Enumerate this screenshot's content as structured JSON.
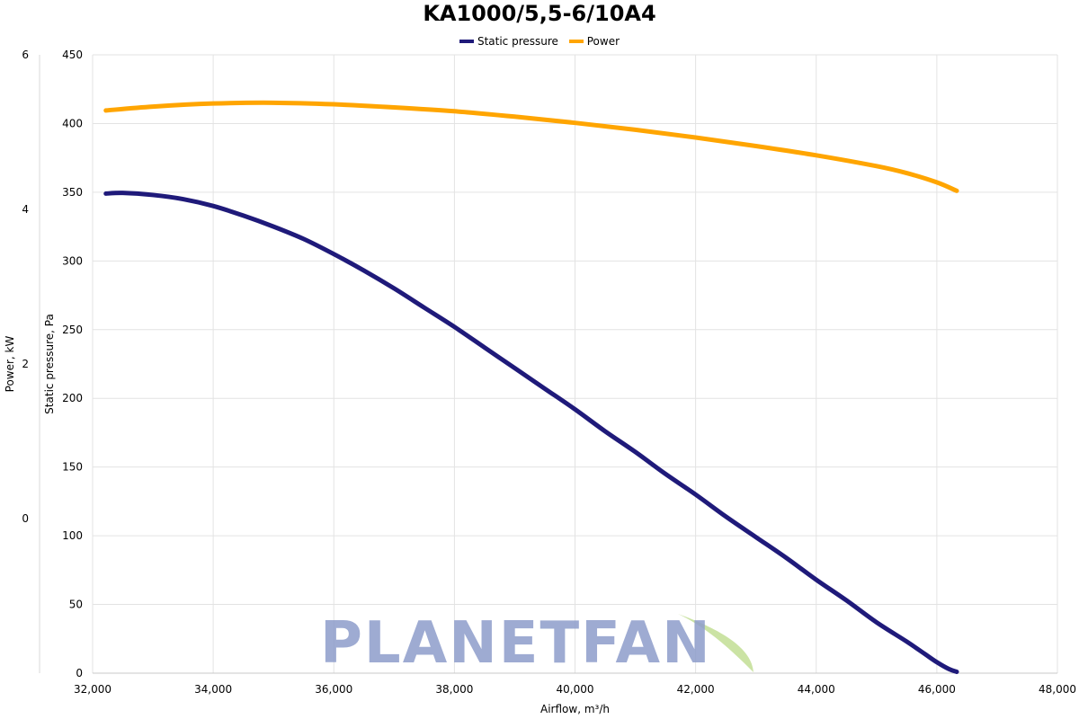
{
  "chart_data": {
    "type": "line",
    "title": "KA1000/5,5-6/10A4",
    "xlabel": "Airflow, m³/h",
    "ylabel_left_outer": "Power, kW",
    "ylabel_left_inner": "Static pressure, Pa",
    "xlim": [
      32000,
      48000
    ],
    "x_ticks": [
      "32,000",
      "34,000",
      "36,000",
      "38,000",
      "40,000",
      "42,000",
      "44,000",
      "46,000",
      "48,000"
    ],
    "y_pressure_lim": [
      0,
      450
    ],
    "y_pressure_ticks": [
      "0",
      "50",
      "100",
      "150",
      "200",
      "250",
      "300",
      "350",
      "400",
      "450"
    ],
    "y_power_lim": [
      -2,
      6
    ],
    "y_power_ticks": [
      "0",
      "2",
      "4",
      "6"
    ],
    "grid": true,
    "legend_position": "top-center",
    "series": [
      {
        "name": "Static pressure",
        "color": "#1f1a7a",
        "axis": "pressure",
        "points": [
          [
            32220,
            349
          ],
          [
            32500,
            349.5
          ],
          [
            33000,
            348
          ],
          [
            33500,
            345
          ],
          [
            34000,
            340
          ],
          [
            34500,
            333
          ],
          [
            35000,
            325
          ],
          [
            35500,
            316
          ],
          [
            36000,
            305
          ],
          [
            36500,
            293
          ],
          [
            37000,
            280
          ],
          [
            37500,
            266
          ],
          [
            38000,
            252
          ],
          [
            38500,
            237
          ],
          [
            39000,
            222
          ],
          [
            39500,
            207
          ],
          [
            40000,
            192
          ],
          [
            40500,
            176
          ],
          [
            41000,
            161
          ],
          [
            41500,
            145
          ],
          [
            42000,
            130
          ],
          [
            42500,
            114
          ],
          [
            43000,
            99
          ],
          [
            43500,
            84
          ],
          [
            44000,
            68
          ],
          [
            44500,
            53
          ],
          [
            45000,
            37
          ],
          [
            45500,
            23
          ],
          [
            45800,
            14
          ],
          [
            46000,
            8
          ],
          [
            46200,
            3
          ],
          [
            46330,
            1
          ]
        ]
      },
      {
        "name": "Power",
        "color": "#ffa500",
        "axis": "power",
        "points": [
          [
            32220,
            5.28
          ],
          [
            33000,
            5.33
          ],
          [
            34000,
            5.37
          ],
          [
            35000,
            5.38
          ],
          [
            36000,
            5.36
          ],
          [
            37000,
            5.32
          ],
          [
            38000,
            5.27
          ],
          [
            39000,
            5.2
          ],
          [
            40000,
            5.12
          ],
          [
            41000,
            5.03
          ],
          [
            42000,
            4.93
          ],
          [
            43000,
            4.82
          ],
          [
            44000,
            4.7
          ],
          [
            45000,
            4.56
          ],
          [
            45500,
            4.47
          ],
          [
            46000,
            4.35
          ],
          [
            46330,
            4.24
          ]
        ]
      }
    ]
  },
  "watermark": {
    "text": "PLANETFAN",
    "color": "#8e9dcb",
    "leaf_color": "#c5e09a"
  }
}
